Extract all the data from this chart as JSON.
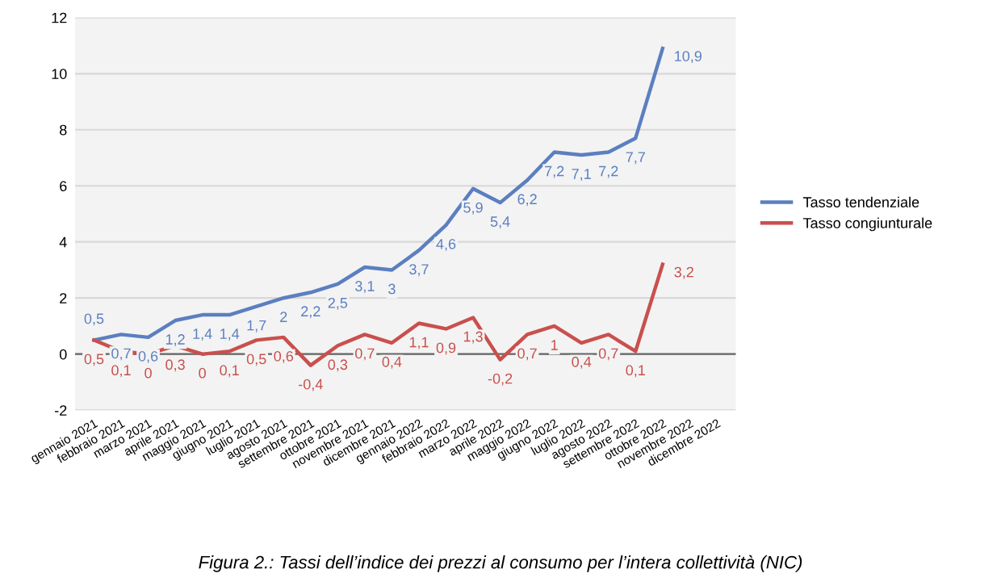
{
  "chart_data": {
    "type": "line",
    "categories": [
      "gennaio 2021",
      "febbraio 2021",
      "marzo 2021",
      "aprile 2021",
      "maggio 2021",
      "giugno 2021",
      "luglio 2021",
      "agosto 2021",
      "settembre 2021",
      "ottobre 2021",
      "novembre 2021",
      "dicembre 2021",
      "gennaio 2022",
      "febbraio 2022",
      "marzo 2022",
      "aprile 2022",
      "maggio 2022",
      "giugno 2022",
      "luglio 2022",
      "agosto 2022",
      "settembre 2022",
      "ottobre 2022",
      "novembre 2022",
      "dicembre 2022"
    ],
    "series": [
      {
        "name": "Tasso tendenziale",
        "color": "#5b7fc0",
        "values": [
          0.5,
          0.7,
          0.6,
          1.2,
          1.4,
          1.4,
          1.7,
          2,
          2.2,
          2.5,
          3.1,
          3,
          3.7,
          4.6,
          5.9,
          5.4,
          6.2,
          7.2,
          7.1,
          7.2,
          7.7,
          10.9,
          null,
          null
        ],
        "value_labels": [
          "0,5",
          "0,7",
          "0,6",
          "1,2",
          "1,4",
          "1,4",
          "1,7",
          "2",
          "2,2",
          "2,5",
          "3,1",
          "3",
          "3,7",
          "4,6",
          "5,9",
          "5,4",
          "6,2",
          "7,2",
          "7,1",
          "7,2",
          "7,7",
          "10,9",
          null,
          null
        ]
      },
      {
        "name": "Tasso congiunturale",
        "color": "#c9504d",
        "values": [
          0.5,
          0.1,
          0,
          0.3,
          0,
          0.1,
          0.5,
          0.6,
          -0.4,
          0.3,
          0.7,
          0.4,
          1.1,
          0.9,
          1.3,
          -0.2,
          0.7,
          1,
          0.4,
          0.7,
          0.1,
          3.2,
          null,
          null
        ],
        "value_labels": [
          "0,5",
          "0,1",
          "0",
          "0,3",
          "0",
          "0,1",
          "0,5",
          "0,6",
          "-0,4",
          "0,3",
          "0,7",
          "0,4",
          "1,1",
          "0,9",
          "1,3",
          "-0,2",
          "0,7",
          "1",
          "0,4",
          "0,7",
          "0,1",
          "3,2",
          null,
          null
        ]
      }
    ],
    "ylim": [
      -2,
      12
    ],
    "yticks": [
      -2,
      0,
      2,
      4,
      6,
      8,
      10,
      12
    ],
    "grid": "y",
    "legend": "right",
    "marker": "none",
    "line_style": "solid",
    "annotations": [
      "Figura 2.: Tassi dell’indice dei prezzi al consumo per l’intera collettività (NIC)"
    ]
  }
}
